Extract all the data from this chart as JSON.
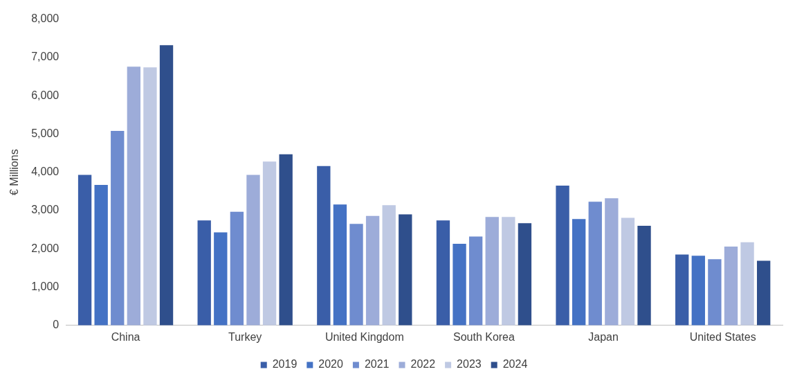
{
  "chart_data": {
    "type": "bar",
    "ylabel": "€ Millions",
    "categories": [
      "China",
      "Turkey",
      "United Kingdom",
      "South Korea",
      "Japan",
      "United States"
    ],
    "series": [
      {
        "name": "2019",
        "color": "#3a5ea8",
        "values": [
          3930,
          2740,
          4160,
          2740,
          3650,
          1850
        ]
      },
      {
        "name": "2020",
        "color": "#4472c4",
        "values": [
          3670,
          2430,
          3160,
          2130,
          2780,
          1820
        ]
      },
      {
        "name": "2021",
        "color": "#6f8ccf",
        "values": [
          5080,
          2970,
          2650,
          2320,
          3230,
          1730
        ]
      },
      {
        "name": "2022",
        "color": "#9dacd9",
        "values": [
          6760,
          3930,
          2860,
          2830,
          3320,
          2060
        ]
      },
      {
        "name": "2023",
        "color": "#bfc9e3",
        "values": [
          6740,
          4280,
          3140,
          2830,
          2810,
          2170
        ]
      },
      {
        "name": "2024",
        "color": "#2f4f8c",
        "values": [
          7320,
          4470,
          2900,
          2670,
          2600,
          1690
        ]
      }
    ],
    "ylim": [
      0,
      8000
    ],
    "yticks": [
      {
        "value": 0,
        "label": "0"
      },
      {
        "value": 1000,
        "label": "1,000"
      },
      {
        "value": 2000,
        "label": "2,000"
      },
      {
        "value": 3000,
        "label": "3,000"
      },
      {
        "value": 4000,
        "label": "4,000"
      },
      {
        "value": 5000,
        "label": "5,000"
      },
      {
        "value": 6000,
        "label": "6,000"
      },
      {
        "value": 7000,
        "label": "7,000"
      },
      {
        "value": 8000,
        "label": "8,000"
      }
    ],
    "grid": false,
    "legend": "bottom"
  }
}
